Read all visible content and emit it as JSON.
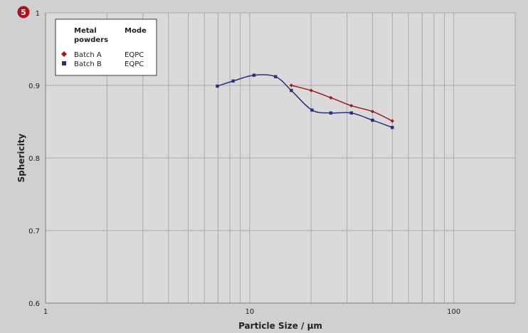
{
  "badge": {
    "label": "5",
    "color": "#b0121b"
  },
  "colors": {
    "background": "#cfd0d2",
    "plot_area": "#dadadb",
    "grid": "#a9aaac",
    "series_a": "#9b1b1f",
    "series_b": "#2c2f7c"
  },
  "chart_data": {
    "type": "line",
    "xscale": "log",
    "xlabel": "Particle Size / µm",
    "ylabel": "Sphericity",
    "xlim": [
      1,
      200
    ],
    "ylim": [
      0.6,
      1.0
    ],
    "x_ticks": [
      {
        "value": 1,
        "label": "1"
      },
      {
        "value": 10,
        "label": "10"
      },
      {
        "value": 100,
        "label": "100"
      }
    ],
    "y_ticks": [
      {
        "value": 0.6,
        "label": "0.6"
      },
      {
        "value": 0.7,
        "label": "0.7"
      },
      {
        "value": 0.8,
        "label": "0.8"
      },
      {
        "value": 0.9,
        "label": "0.9"
      },
      {
        "value": 1.0,
        "label": "1"
      }
    ],
    "grid": true,
    "legend": {
      "placement": "top-left",
      "header_name": [
        "Metal",
        "powders"
      ],
      "header_mode": "Mode",
      "entries": [
        {
          "name": "Batch A",
          "mode": "EQPC",
          "marker": "diamond"
        },
        {
          "name": "Batch B",
          "mode": "EQPC",
          "marker": "square"
        }
      ]
    },
    "series": [
      {
        "name": "Batch A",
        "marker": "diamond",
        "x": [
          16,
          20,
          25,
          31.5,
          40,
          50
        ],
        "y": [
          0.9,
          0.893,
          0.883,
          0.872,
          0.864,
          0.851
        ]
      },
      {
        "name": "Batch B",
        "marker": "square",
        "x": [
          6.95,
          8.3,
          10.5,
          13.4,
          16,
          20.2,
          25,
          31.5,
          40,
          50
        ],
        "y": [
          0.899,
          0.906,
          0.914,
          0.912,
          0.893,
          0.866,
          0.862,
          0.862,
          0.852,
          0.842
        ]
      }
    ]
  }
}
